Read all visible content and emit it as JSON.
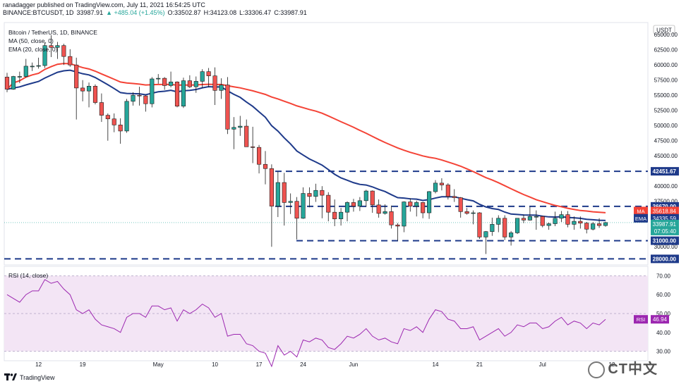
{
  "header": {
    "publisher_line": "ranadagger published on TradingView.com, July 11, 2021 16:54:25 UTC",
    "symbol": "BINANCE:BTCUSDT, 1D",
    "last": "33987.91",
    "change": "▲ +485.04 (+1.45%)",
    "open": "O:33502.87",
    "high": "H:34123.08",
    "low": "L:33306.47",
    "close": "C:33987.91"
  },
  "legend": {
    "title": "Bitcoin / TetherUS, 1D, BINANCE",
    "ma": "MA (50, close, 0)",
    "ema": "EMA (20, close, 0)",
    "rsi": "RSI (14, close)"
  },
  "axis": {
    "currency": "USDT",
    "price_ticks": [
      "65000.00",
      "62500.00",
      "60000.00",
      "57500.00",
      "55000.00",
      "52500.00",
      "50000.00",
      "47500.00",
      "45000.00",
      "40000.00",
      "37500.00",
      "30000.00"
    ],
    "rsi_ticks": [
      "70.00",
      "60.00",
      "50.00",
      "40.00",
      "30.00"
    ],
    "date_ticks": [
      "12",
      "19",
      "May",
      "10",
      "17",
      "24",
      "Jun",
      "14",
      "21",
      "Jul",
      "12"
    ]
  },
  "price_labels": {
    "level_42451": "42451.67",
    "level_36670": "36670.00",
    "ma_value": "35618.84",
    "ema_value": "34335.59",
    "last_price": "33987.91",
    "countdown": "07:05:40",
    "level_31000": "31000.00",
    "level_28000": "28000.00",
    "ma_tag": "MA",
    "ema_tag": "EMA",
    "rsi_tag": "RSI",
    "rsi_value": "46.94"
  },
  "footer": {
    "brand": "TradingView",
    "watermark": "CT中文"
  },
  "colors": {
    "up": "#26a69a",
    "down": "#ef5350",
    "ma": "#f44336",
    "ema": "#1e3a8a",
    "rsi": "#9c27b0",
    "rsi_band": "#f3e5f5",
    "level": "#1e3a8a"
  },
  "chart_data": {
    "type": "candlestick",
    "title": "Bitcoin / TetherUS, 1D, BINANCE",
    "ylim": [
      27000,
      67000
    ],
    "horizontal_levels": [
      42451.67,
      36670.0,
      31000.0,
      28000.0
    ],
    "x": [
      "Apr 7",
      "Apr 8",
      "Apr 9",
      "Apr 10",
      "Apr 11",
      "Apr 12",
      "Apr 13",
      "Apr 14",
      "Apr 15",
      "Apr 16",
      "Apr 17",
      "Apr 18",
      "Apr 19",
      "Apr 20",
      "Apr 21",
      "Apr 22",
      "Apr 23",
      "Apr 24",
      "Apr 25",
      "Apr 26",
      "Apr 27",
      "Apr 28",
      "Apr 29",
      "Apr 30",
      "May 1",
      "May 2",
      "May 3",
      "May 4",
      "May 5",
      "May 6",
      "May 7",
      "May 8",
      "May 9",
      "May 10",
      "May 11",
      "May 12",
      "May 13",
      "May 14",
      "May 15",
      "May 16",
      "May 17",
      "May 18",
      "May 19",
      "May 20",
      "May 21",
      "May 22",
      "May 23",
      "May 24",
      "May 25",
      "May 26",
      "May 27",
      "May 28",
      "May 29",
      "May 30",
      "May 31",
      "Jun 1",
      "Jun 2",
      "Jun 3",
      "Jun 4",
      "Jun 5",
      "Jun 6",
      "Jun 7",
      "Jun 8",
      "Jun 9",
      "Jun 10",
      "Jun 11",
      "Jun 12",
      "Jun 13",
      "Jun 14",
      "Jun 15",
      "Jun 16",
      "Jun 17",
      "Jun 18",
      "Jun 19",
      "Jun 20",
      "Jun 21",
      "Jun 22",
      "Jun 23",
      "Jun 24",
      "Jun 25",
      "Jun 26",
      "Jun 27",
      "Jun 28",
      "Jun 29",
      "Jun 30",
      "Jul 1",
      "Jul 2",
      "Jul 3",
      "Jul 4",
      "Jul 5",
      "Jul 6",
      "Jul 7",
      "Jul 8",
      "Jul 9",
      "Jul 10",
      "Jul 11"
    ],
    "open": [
      58000,
      56000,
      58100,
      58100,
      59800,
      59800,
      59900,
      63200,
      62900,
      63200,
      61400,
      60000,
      56200,
      55700,
      56500,
      53800,
      51700,
      51100,
      50100,
      49100,
      54000,
      55000,
      54900,
      53600,
      57700,
      57800,
      56600,
      57200,
      53200,
      57400,
      56400,
      57300,
      58900,
      58200,
      55800,
      56700,
      49400,
      49700,
      49900,
      46500,
      46400,
      43600,
      42900,
      36700,
      40600,
      37300,
      37500,
      34700,
      38800,
      38300,
      39300,
      38500,
      35700,
      34600,
      35700,
      37300,
      36700,
      37600,
      39200,
      36900,
      35500,
      35800,
      33600,
      33400,
      37400,
      36700,
      37300,
      35600,
      39100,
      40500,
      40200,
      38300,
      38100,
      35800,
      35500,
      35600,
      31600,
      32500,
      33700,
      34700,
      31600,
      32300,
      34700,
      34400,
      35000,
      35000,
      33500,
      33800,
      34700,
      35300,
      33700,
      34200,
      33900,
      32900,
      33800,
      33500
    ],
    "high": [
      58700,
      58200,
      58900,
      61000,
      60400,
      61200,
      63700,
      64900,
      63800,
      63500,
      62600,
      61200,
      57500,
      57100,
      56800,
      55300,
      52000,
      52000,
      51200,
      54400,
      55500,
      56400,
      55000,
      58000,
      58500,
      58000,
      58900,
      57300,
      57900,
      58300,
      58100,
      59300,
      59500,
      59600,
      57800,
      58000,
      51400,
      51600,
      51000,
      49800,
      46800,
      45800,
      43600,
      42400,
      42200,
      38800,
      38200,
      39800,
      39800,
      40400,
      40000,
      39000,
      37800,
      36400,
      37500,
      37900,
      38200,
      39400,
      39300,
      37800,
      37000,
      36800,
      33900,
      37500,
      38000,
      37600,
      37400,
      39200,
      41000,
      41300,
      40500,
      39500,
      38200,
      36400,
      36000,
      35700,
      32600,
      34800,
      35200,
      35200,
      32600,
      34700,
      35300,
      36600,
      36000,
      35100,
      34000,
      35800,
      35900,
      35900,
      35000,
      35000,
      34100,
      34100,
      34700,
      34123
    ],
    "low": [
      55500,
      55900,
      57000,
      57900,
      59000,
      59400,
      59500,
      61300,
      61000,
      60000,
      59700,
      51000,
      54000,
      53000,
      53500,
      50600,
      47500,
      48900,
      47000,
      48800,
      53300,
      53300,
      52300,
      53000,
      56900,
      55900,
      56300,
      53000,
      52900,
      56200,
      55400,
      56200,
      56300,
      53400,
      54400,
      48600,
      46100,
      48300,
      46600,
      43800,
      42100,
      40300,
      30000,
      34900,
      33500,
      35400,
      31200,
      34600,
      36500,
      37400,
      34700,
      34200,
      33400,
      33500,
      34200,
      35800,
      35900,
      36600,
      35600,
      34800,
      35300,
      33000,
      31000,
      32400,
      35800,
      35000,
      34700,
      34600,
      38800,
      39300,
      37800,
      37400,
      34800,
      35300,
      33700,
      31300,
      28800,
      31800,
      32400,
      31100,
      30200,
      32100,
      33900,
      34300,
      32800,
      33200,
      32800,
      33400,
      34100,
      33200,
      32800,
      33000,
      32200,
      32700,
      33100,
      33306
    ],
    "close": [
      56000,
      58100,
      58100,
      59800,
      59800,
      59900,
      63200,
      62900,
      63200,
      61400,
      60000,
      56200,
      55700,
      56500,
      53800,
      51700,
      51100,
      50100,
      49100,
      54000,
      55000,
      54900,
      53600,
      57700,
      57800,
      56600,
      57200,
      53200,
      57400,
      56400,
      57300,
      58900,
      58200,
      55800,
      56700,
      49400,
      49700,
      49900,
      46500,
      46400,
      43600,
      42900,
      36700,
      40600,
      37300,
      37500,
      34700,
      38800,
      38300,
      39300,
      38500,
      35700,
      34600,
      35700,
      37300,
      36700,
      37600,
      39200,
      36900,
      35500,
      35800,
      33600,
      33400,
      37400,
      36700,
      37300,
      35600,
      39100,
      40500,
      40200,
      38300,
      38100,
      35800,
      35500,
      35600,
      31600,
      32500,
      33700,
      34700,
      31600,
      32300,
      34700,
      34400,
      35000,
      35000,
      33500,
      33800,
      34700,
      35300,
      33700,
      34200,
      33900,
      32900,
      33800,
      33500,
      33987.91
    ],
    "ma50_last": 35618.84,
    "ema20_last": 34335.59,
    "rsi": [
      60,
      58,
      56,
      60,
      62,
      62,
      68,
      66,
      67,
      63,
      60,
      52,
      50,
      52,
      47,
      44,
      43,
      42,
      40,
      48,
      50,
      50,
      48,
      54,
      54,
      52,
      53,
      46,
      52,
      50,
      52,
      55,
      53,
      48,
      50,
      38,
      39,
      39,
      34,
      33,
      30,
      29,
      22,
      33,
      28,
      30,
      27,
      36,
      35,
      37,
      36,
      32,
      31,
      34,
      38,
      37,
      39,
      42,
      38,
      36,
      37,
      35,
      34,
      42,
      41,
      43,
      40,
      47,
      52,
      51,
      47,
      46,
      42,
      42,
      43,
      36,
      38,
      40,
      42,
      38,
      40,
      44,
      43,
      45,
      45,
      42,
      43,
      46,
      48,
      44,
      46,
      45,
      42,
      45,
      44,
      46.94
    ],
    "rsi_ylim": [
      25,
      75
    ],
    "rsi_band": [
      30,
      70
    ]
  }
}
